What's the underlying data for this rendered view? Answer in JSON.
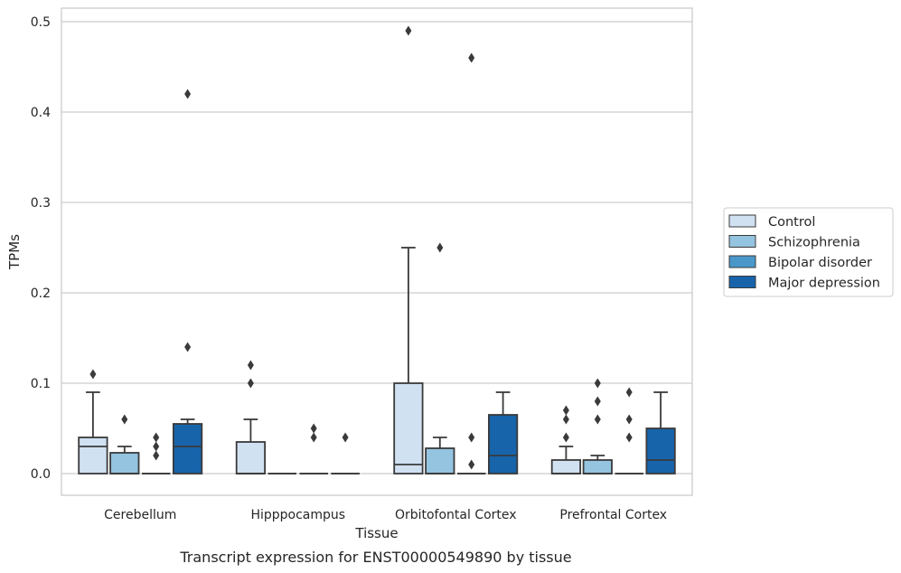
{
  "caption": "Transcript expression for ENST00000549890 by tissue",
  "chart_data": {
    "type": "boxplot",
    "xlabel": "Tissue",
    "ylabel": "TPMs",
    "ylim": [
      -0.023,
      0.515
    ],
    "yticks": [
      0.0,
      0.1,
      0.2,
      0.3,
      0.4,
      0.5
    ],
    "ytick_labels": [
      "0.0",
      "0.1",
      "0.2",
      "0.3",
      "0.4",
      "0.5"
    ],
    "grid": "horizontal",
    "legend_position": "right",
    "categories": [
      "Cerebellum",
      "Hipppocampus",
      "Orbitofontal Cortex",
      "Prefrontal Cortex"
    ],
    "series": [
      {
        "name": "Control",
        "color": "#d0e1f2",
        "boxes": [
          {
            "q1": 0.0,
            "median": 0.03,
            "q3": 0.04,
            "whisker_low": 0.0,
            "whisker_high": 0.09,
            "outliers": [
              0.11
            ]
          },
          {
            "q1": 0.0,
            "median": 0.0,
            "q3": 0.035,
            "whisker_low": 0.0,
            "whisker_high": 0.06,
            "outliers": [
              0.1,
              0.12
            ]
          },
          {
            "q1": 0.0,
            "median": 0.01,
            "q3": 0.1,
            "whisker_low": 0.0,
            "whisker_high": 0.25,
            "outliers": [
              0.49
            ]
          },
          {
            "q1": 0.0,
            "median": 0.0,
            "q3": 0.015,
            "whisker_low": 0.0,
            "whisker_high": 0.03,
            "outliers": [
              0.04,
              0.06,
              0.07
            ]
          }
        ]
      },
      {
        "name": "Schizophrenia",
        "color": "#94c4df",
        "boxes": [
          {
            "q1": 0.0,
            "median": 0.0,
            "q3": 0.023,
            "whisker_low": 0.0,
            "whisker_high": 0.03,
            "outliers": [
              0.06
            ]
          },
          {
            "q1": 0.0,
            "median": 0.0,
            "q3": 0.0,
            "whisker_low": 0.0,
            "whisker_high": 0.0,
            "outliers": []
          },
          {
            "q1": 0.0,
            "median": 0.0,
            "q3": 0.028,
            "whisker_low": 0.0,
            "whisker_high": 0.04,
            "outliers": [
              0.25
            ]
          },
          {
            "q1": 0.0,
            "median": 0.0,
            "q3": 0.015,
            "whisker_low": 0.0,
            "whisker_high": 0.02,
            "outliers": [
              0.06,
              0.08,
              0.1
            ]
          }
        ]
      },
      {
        "name": "Bipolar disorder",
        "color": "#4a98c9",
        "boxes": [
          {
            "q1": 0.0,
            "median": 0.0,
            "q3": 0.0,
            "whisker_low": 0.0,
            "whisker_high": 0.0,
            "outliers": [
              0.02,
              0.03,
              0.04
            ]
          },
          {
            "q1": 0.0,
            "median": 0.0,
            "q3": 0.0,
            "whisker_low": 0.0,
            "whisker_high": 0.0,
            "outliers": [
              0.04,
              0.05
            ]
          },
          {
            "q1": 0.0,
            "median": 0.0,
            "q3": 0.0,
            "whisker_low": 0.0,
            "whisker_high": 0.0,
            "outliers": [
              0.01,
              0.04,
              0.46
            ]
          },
          {
            "q1": 0.0,
            "median": 0.0,
            "q3": 0.0,
            "whisker_low": 0.0,
            "whisker_high": 0.0,
            "outliers": [
              0.04,
              0.06,
              0.09
            ]
          }
        ]
      },
      {
        "name": "Major depression",
        "color": "#1764ab",
        "boxes": [
          {
            "q1": 0.0,
            "median": 0.03,
            "q3": 0.055,
            "whisker_low": 0.0,
            "whisker_high": 0.06,
            "outliers": [
              0.14,
              0.42
            ]
          },
          {
            "q1": 0.0,
            "median": 0.0,
            "q3": 0.0,
            "whisker_low": 0.0,
            "whisker_high": 0.0,
            "outliers": [
              0.04
            ]
          },
          {
            "q1": 0.0,
            "median": 0.02,
            "q3": 0.065,
            "whisker_low": 0.0,
            "whisker_high": 0.09,
            "outliers": []
          },
          {
            "q1": 0.0,
            "median": 0.015,
            "q3": 0.05,
            "whisker_low": 0.0,
            "whisker_high": 0.09,
            "outliers": []
          }
        ]
      }
    ]
  }
}
